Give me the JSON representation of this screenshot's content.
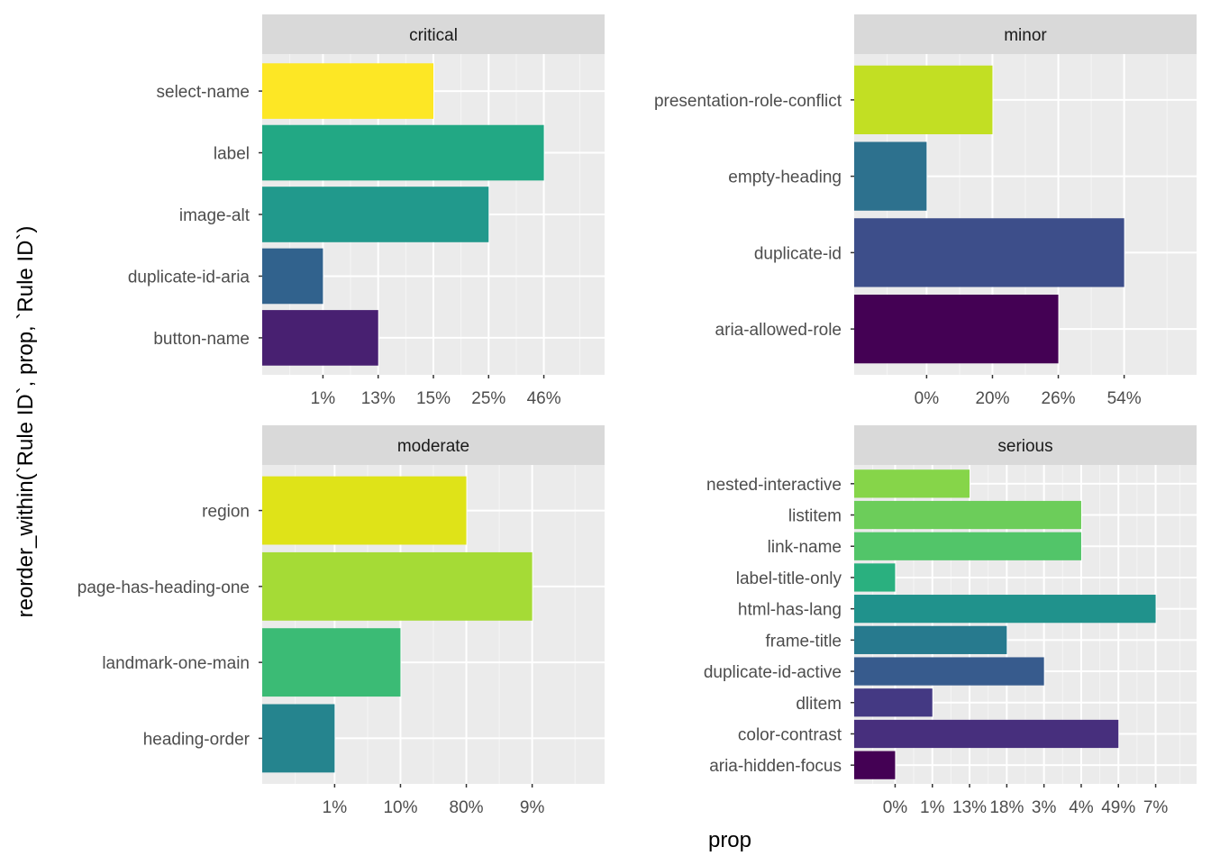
{
  "figure": {
    "y_axis_title": "reorder_within(`Rule ID`, prop, `Rule ID`)",
    "x_axis_title": "prop",
    "palette": {
      "panel_bg": "#ebebeb",
      "strip_bg": "#d9d9d9",
      "grid": "#ffffff",
      "tick_text": "#4d4d4d"
    }
  },
  "chart_data": [
    {
      "type": "bar",
      "orientation": "horizontal",
      "facet": "critical",
      "x_ticks": [
        "1%",
        "13%",
        "15%",
        "25%",
        "46%"
      ],
      "categories": [
        "select-name",
        "label",
        "image-alt",
        "duplicate-id-aria",
        "button-name"
      ],
      "values": [
        "15%",
        "46%",
        "25%",
        "1%",
        "13%"
      ],
      "colors": [
        "#fde725",
        "#22a884",
        "#21998c",
        "#31628d",
        "#482071"
      ]
    },
    {
      "type": "bar",
      "orientation": "horizontal",
      "facet": "minor",
      "x_ticks": [
        "0%",
        "20%",
        "26%",
        "54%"
      ],
      "categories": [
        "presentation-role-conflict",
        "empty-heading",
        "duplicate-id",
        "aria-allowed-role"
      ],
      "values": [
        "20%",
        "0%",
        "54%",
        "26%"
      ],
      "colors": [
        "#c2df23",
        "#2d718e",
        "#3d4e8a",
        "#440154"
      ]
    },
    {
      "type": "bar",
      "orientation": "horizontal",
      "facet": "moderate",
      "x_ticks": [
        "1%",
        "10%",
        "80%",
        "9%"
      ],
      "categories": [
        "region",
        "page-has-heading-one",
        "landmark-one-main",
        "heading-order"
      ],
      "values": [
        "80%",
        "9%",
        "10%",
        "1%"
      ],
      "colors": [
        "#dfe318",
        "#a5db36",
        "#3bbb75",
        "#25848e"
      ]
    },
    {
      "type": "bar",
      "orientation": "horizontal",
      "facet": "serious",
      "x_ticks": [
        "0%",
        "1%",
        "13%",
        "18%",
        "3%",
        "4%",
        "49%",
        "7%"
      ],
      "categories": [
        "nested-interactive",
        "listitem",
        "link-name",
        "label-title-only",
        "html-has-lang",
        "frame-title",
        "duplicate-id-active",
        "dlitem",
        "color-contrast",
        "aria-hidden-focus"
      ],
      "values": [
        "13%",
        "4%",
        "4%",
        "0%",
        "7%",
        "18%",
        "3%",
        "1%",
        "49%",
        "0%"
      ],
      "colors": [
        "#86d549",
        "#6ccd5a",
        "#52c569",
        "#2ab07f",
        "#20928c",
        "#277a8e",
        "#375b8d",
        "#443983",
        "#472f7d",
        "#440154"
      ]
    }
  ]
}
